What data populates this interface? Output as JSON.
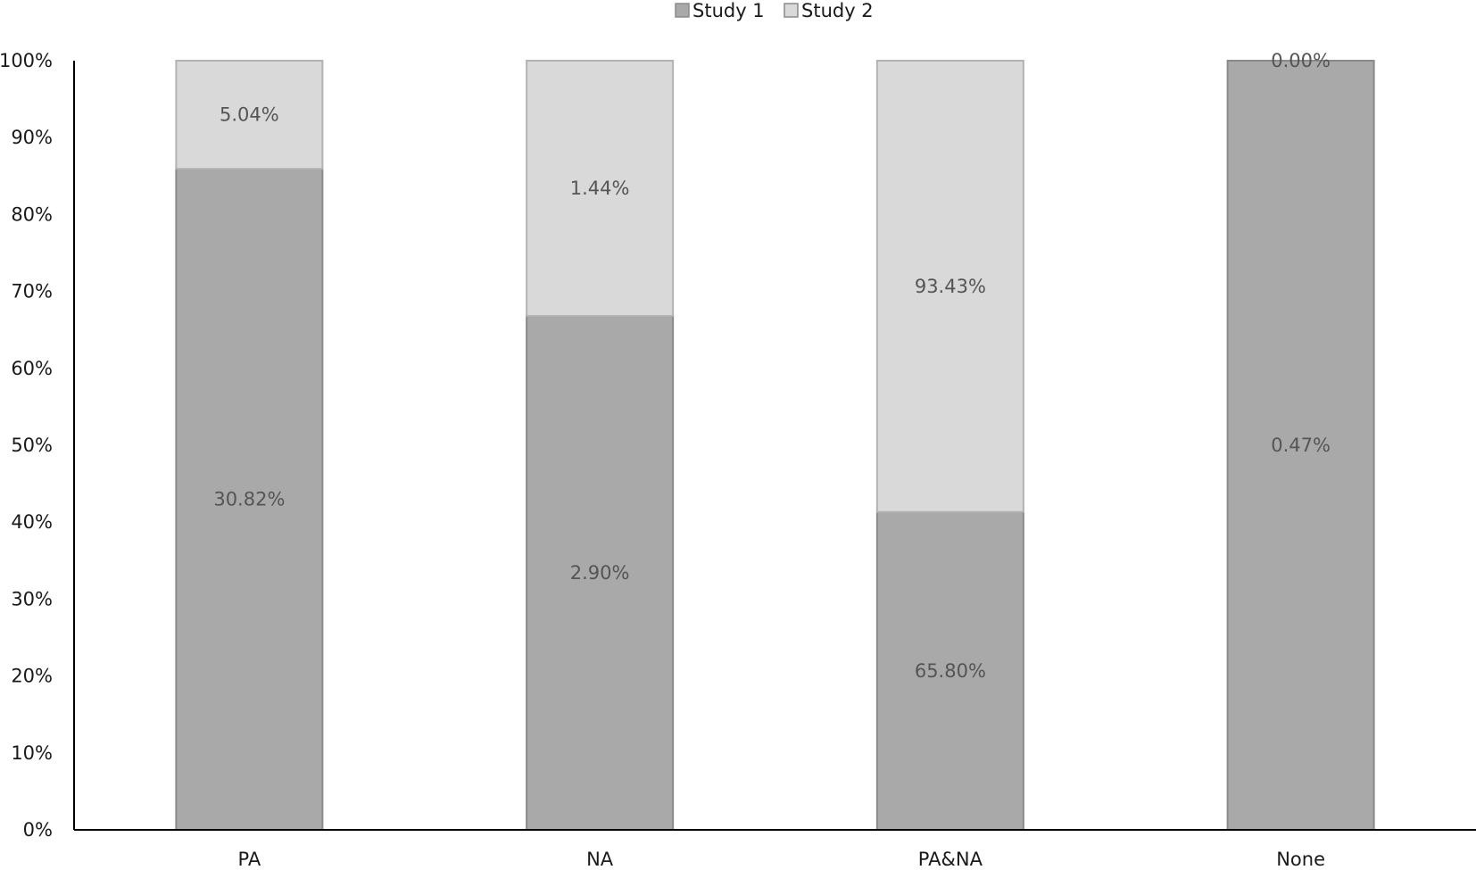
{
  "chart_data": {
    "type": "bar",
    "stacked": true,
    "normalized": true,
    "categories": [
      "PA",
      "NA",
      "PA&NA",
      "None"
    ],
    "series": [
      {
        "name": "Study 1",
        "color": "#a9a9a9",
        "values": [
          30.82,
          2.9,
          65.8,
          0.47
        ],
        "labels": [
          "30.82%",
          "2.90%",
          "65.80%",
          "0.47%"
        ]
      },
      {
        "name": "Study 2",
        "color": "#d9d9d9",
        "values": [
          5.04,
          1.44,
          93.43,
          0.0
        ],
        "labels": [
          "5.04%",
          "1.44%",
          "93.43%",
          "0.00%"
        ]
      }
    ],
    "ylim": [
      0,
      100
    ],
    "yticks": [
      "0%",
      "10%",
      "20%",
      "30%",
      "40%",
      "50%",
      "60%",
      "70%",
      "80%",
      "90%",
      "100%"
    ],
    "legend_position": "top-center",
    "grid": false
  }
}
